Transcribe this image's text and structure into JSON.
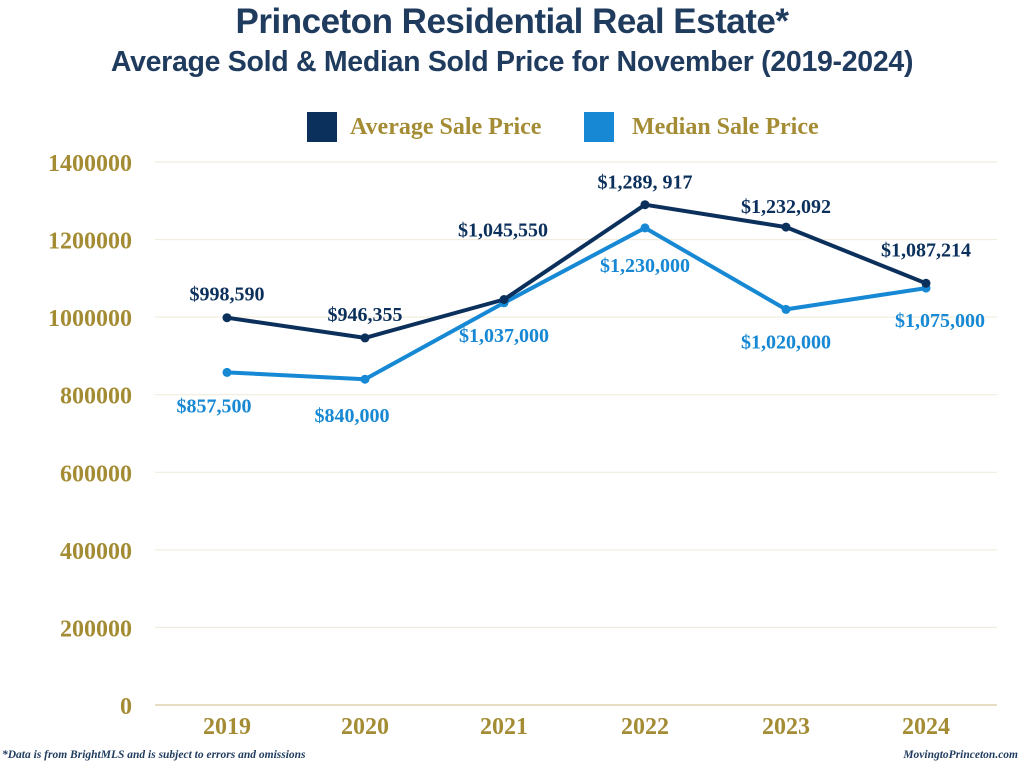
{
  "header": {
    "title": "Princeton Residential Real Estate*",
    "subtitle": "Average Sold & Median Sold Price for November (2019-2024)"
  },
  "footer": {
    "disclaimer": "*Data is from BrightMLS and is subject to errors and omissions",
    "source_site": "MovingtoPrinceton.com"
  },
  "colors": {
    "title": "#1f3b5e",
    "axis_text": "#a48c35",
    "legend_text": "#a48c35",
    "grid": "#efe9d8",
    "average": "#0c305c",
    "median": "#1688d4"
  },
  "chart_data": {
    "type": "line",
    "title": "Princeton Residential Real Estate*",
    "subtitle": "Average Sold & Median Sold Price for November (2019-2024)",
    "xlabel": "",
    "ylabel": "",
    "categories": [
      "2019",
      "2020",
      "2021",
      "2022",
      "2023",
      "2024"
    ],
    "ylim": [
      0,
      1400000
    ],
    "yticks": [
      0,
      200000,
      400000,
      600000,
      800000,
      1000000,
      1200000,
      1400000
    ],
    "ytick_labels": [
      "0",
      "200000",
      "400000",
      "600000",
      "800000",
      "1000000",
      "1200000",
      "1400000"
    ],
    "grid": true,
    "legend_position": "top-center",
    "series": [
      {
        "name": "Average Sale Price",
        "color": "#0c305c",
        "values": [
          998590,
          946355,
          1045550,
          1289917,
          1232092,
          1087214
        ],
        "labels": [
          "$998,590",
          "$946,355",
          "$1,045,550",
          "$1,289, 917",
          "$1,232,092",
          "$1,087,214"
        ],
        "label_position": [
          "above",
          "above",
          "above",
          "above",
          "above",
          "above"
        ]
      },
      {
        "name": "Median Sale Price",
        "color": "#1688d4",
        "values": [
          857500,
          840000,
          1037000,
          1230000,
          1020000,
          1075000
        ],
        "labels": [
          "$857,500",
          "$840,000",
          "$1,037,000",
          "$1,230,000",
          "$1,020,000",
          "$1,075,000"
        ],
        "label_position": [
          "below",
          "below",
          "below",
          "below",
          "below",
          "below"
        ]
      }
    ]
  }
}
